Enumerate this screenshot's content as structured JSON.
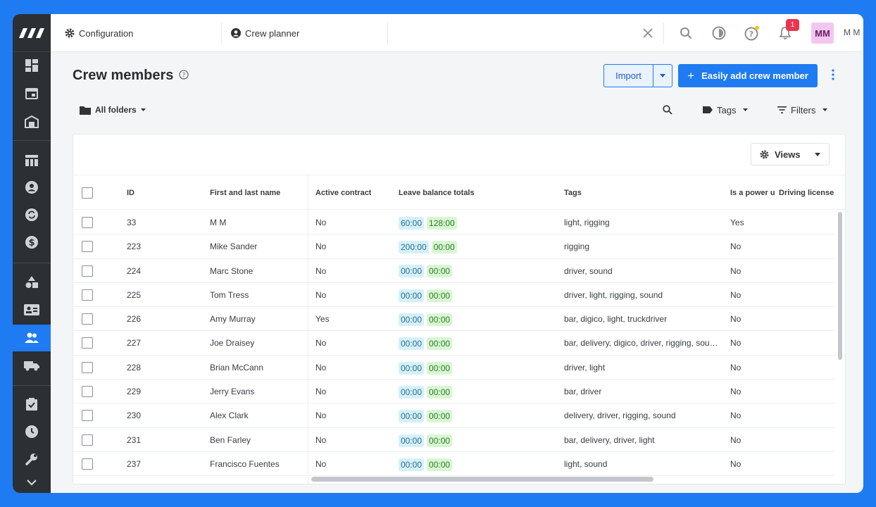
{
  "topbar": {
    "tab1_label": "Configuration",
    "tab2_label": "Crew planner",
    "notification_count": "1",
    "avatar_initials": "MM",
    "username": "M M"
  },
  "page": {
    "title": "Crew members",
    "import_label": "Import",
    "add_label": "Easily add crew member"
  },
  "filters": {
    "folders_label": "All folders",
    "tags_label": "Tags",
    "filters_label": "Filters"
  },
  "table": {
    "views_label": "Views",
    "columns": [
      "ID",
      "First and last name",
      "Active contract",
      "Leave balance totals",
      "Tags",
      "Is a power u",
      "Driving license"
    ],
    "rows": [
      {
        "id": "33",
        "name": "M M",
        "active": "No",
        "leave1": "60:00",
        "leave2": "128:00",
        "tags": "light, rigging",
        "power": "Yes"
      },
      {
        "id": "223",
        "name": "Mike Sander",
        "active": "No",
        "leave1": "200:00",
        "leave2": "00:00",
        "tags": "rigging",
        "power": "No"
      },
      {
        "id": "224",
        "name": "Marc Stone",
        "active": "No",
        "leave1": "00:00",
        "leave2": "00:00",
        "tags": "driver, sound",
        "power": "No"
      },
      {
        "id": "225",
        "name": "Tom Tress",
        "active": "No",
        "leave1": "00:00",
        "leave2": "00:00",
        "tags": "driver, light, rigging, sound",
        "power": "No"
      },
      {
        "id": "226",
        "name": "Amy Murray",
        "active": "Yes",
        "leave1": "00:00",
        "leave2": "00:00",
        "tags": "bar, digico, light, truckdriver",
        "power": "No"
      },
      {
        "id": "227",
        "name": "Joe Draisey",
        "active": "No",
        "leave1": "00:00",
        "leave2": "00:00",
        "tags": "bar, delivery, digico, driver, rigging, sou…",
        "power": "No"
      },
      {
        "id": "228",
        "name": "Brian McCann",
        "active": "No",
        "leave1": "00:00",
        "leave2": "00:00",
        "tags": "driver, light",
        "power": "No"
      },
      {
        "id": "229",
        "name": "Jerry Evans",
        "active": "No",
        "leave1": "00:00",
        "leave2": "00:00",
        "tags": "bar, driver",
        "power": "No"
      },
      {
        "id": "230",
        "name": "Alex Clark",
        "active": "No",
        "leave1": "00:00",
        "leave2": "00:00",
        "tags": "delivery, driver, rigging, sound",
        "power": "No"
      },
      {
        "id": "231",
        "name": "Ben Farley",
        "active": "No",
        "leave1": "00:00",
        "leave2": "00:00",
        "tags": "bar, delivery, driver, light",
        "power": "No"
      },
      {
        "id": "237",
        "name": "Francisco Fuentes",
        "active": "No",
        "leave1": "00:00",
        "leave2": "00:00",
        "tags": "light, sound",
        "power": "No"
      }
    ]
  },
  "colors": {
    "accent": "#1f7bf2",
    "rail": "#2c2f33",
    "badge": "#e8364f",
    "avatar_bg": "#f3c6f0"
  },
  "icons": [
    "logo-icon",
    "dashboard-icon",
    "calendar-icon",
    "warehouse-icon",
    "table-icon",
    "user-circle-icon",
    "sync-icon",
    "dollar-icon",
    "shapes-icon",
    "contact-card-icon",
    "crew-icon",
    "truck-icon",
    "clipboard-check-icon",
    "clock-icon",
    "wrench-icon",
    "chevron-down-icon",
    "gear-icon",
    "close-icon",
    "search-icon",
    "theme-icon",
    "help-icon",
    "bell-icon",
    "folder-icon",
    "tag-icon",
    "filter-icon",
    "kebab-icon"
  ]
}
